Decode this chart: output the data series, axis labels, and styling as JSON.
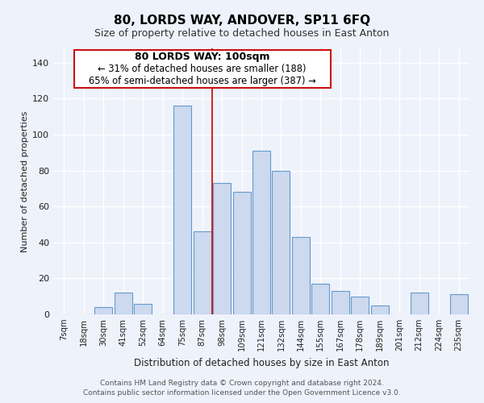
{
  "title": "80, LORDS WAY, ANDOVER, SP11 6FQ",
  "subtitle": "Size of property relative to detached houses in East Anton",
  "xlabel": "Distribution of detached houses by size in East Anton",
  "ylabel": "Number of detached properties",
  "bar_color": "#ccd9ee",
  "bar_edge_color": "#6699cc",
  "categories": [
    "7sqm",
    "18sqm",
    "30sqm",
    "41sqm",
    "52sqm",
    "64sqm",
    "75sqm",
    "87sqm",
    "98sqm",
    "109sqm",
    "121sqm",
    "132sqm",
    "144sqm",
    "155sqm",
    "167sqm",
    "178sqm",
    "189sqm",
    "201sqm",
    "212sqm",
    "224sqm",
    "235sqm"
  ],
  "values": [
    0,
    0,
    4,
    12,
    6,
    0,
    116,
    46,
    73,
    68,
    91,
    80,
    43,
    17,
    13,
    10,
    5,
    0,
    12,
    0,
    11
  ],
  "ylim": [
    0,
    148
  ],
  "yticks": [
    0,
    20,
    40,
    60,
    80,
    100,
    120,
    140
  ],
  "annotation_title": "80 LORDS WAY: 100sqm",
  "annotation_line1": "← 31% of detached houses are smaller (188)",
  "annotation_line2": "65% of semi-detached houses are larger (387) →",
  "vline_pos": 7.5,
  "footer1": "Contains HM Land Registry data © Crown copyright and database right 2024.",
  "footer2": "Contains public sector information licensed under the Open Government Licence v3.0.",
  "bg_color": "#eef2fb",
  "grid_color": "#ffffff"
}
